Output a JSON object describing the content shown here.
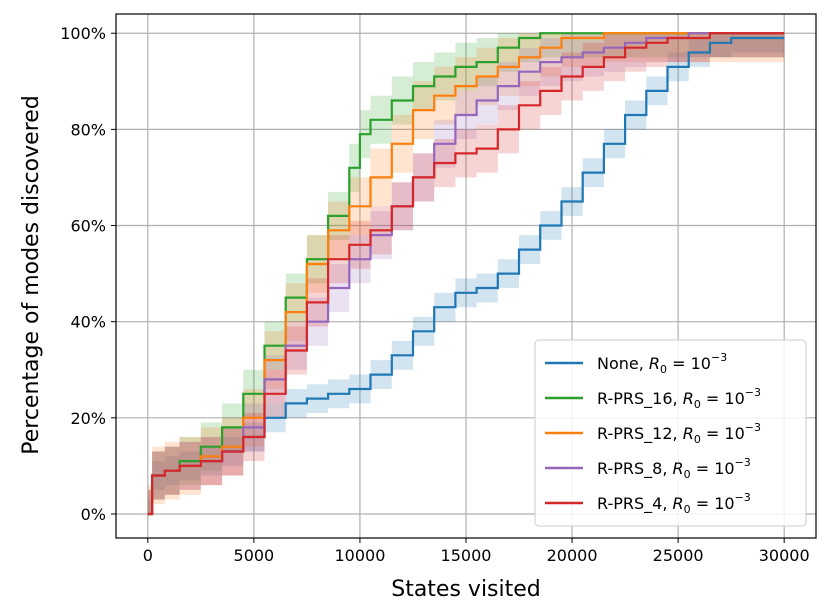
{
  "chart_data": {
    "type": "line",
    "title": "",
    "xlabel": "States visited",
    "ylabel": "Percentage of modes discovered",
    "xlim": [
      -1500,
      31500
    ],
    "ylim": [
      -5,
      104
    ],
    "x_ticks": [
      0,
      5000,
      10000,
      15000,
      20000,
      25000,
      30000
    ],
    "x_tick_labels": [
      "0",
      "5000",
      "10000",
      "15000",
      "20000",
      "25000",
      "30000"
    ],
    "y_ticks": [
      0,
      20,
      40,
      60,
      80,
      100
    ],
    "y_tick_labels": [
      "0%",
      "20%",
      "40%",
      "60%",
      "80%",
      "100%"
    ],
    "grid": true,
    "legend_position": "bottom-right",
    "series": [
      {
        "name": "None",
        "label_prefix": "None, ",
        "color": "#1f77b4",
        "x": [
          0,
          200,
          800,
          1500,
          2500,
          3500,
          4500,
          5500,
          6500,
          7500,
          8500,
          9500,
          10500,
          11500,
          12500,
          13500,
          14500,
          15500,
          16500,
          17500,
          18500,
          19500,
          20500,
          21500,
          22500,
          23500,
          24500,
          25500,
          26500,
          27500,
          28500,
          30000
        ],
        "values": [
          0,
          8,
          9,
          10,
          11,
          13,
          16,
          20,
          23,
          24,
          25,
          26,
          29,
          33,
          38,
          43,
          46,
          47,
          50,
          55,
          60,
          65,
          71,
          77,
          83,
          88,
          93,
          96,
          98,
          99,
          99,
          99
        ],
        "band": 3
      },
      {
        "name": "R-PRS_16",
        "label_prefix": "R-PRS_16, ",
        "color": "#2ca02c",
        "x": [
          0,
          200,
          800,
          1500,
          2500,
          3500,
          4500,
          5500,
          6500,
          7500,
          8500,
          9500,
          10000,
          10500,
          11500,
          12500,
          13500,
          14500,
          15500,
          16500,
          17500,
          18500,
          19500,
          25500,
          30000
        ],
        "values": [
          0,
          8,
          9,
          11,
          14,
          18,
          25,
          35,
          45,
          53,
          62,
          72,
          79,
          82,
          86,
          89,
          91,
          93,
          94,
          97,
          99,
          100,
          100,
          100,
          100
        ],
        "band": 5
      },
      {
        "name": "R-PRS_12",
        "label_prefix": "R-PRS_12, ",
        "color": "#ff7f0e",
        "x": [
          0,
          200,
          800,
          1500,
          2500,
          3500,
          4500,
          5500,
          6500,
          7500,
          8500,
          9500,
          10500,
          11500,
          12500,
          13500,
          14500,
          15500,
          16500,
          17500,
          18500,
          19500,
          20500,
          21500,
          25500,
          30000
        ],
        "values": [
          0,
          8,
          9,
          10,
          12,
          14,
          20,
          32,
          42,
          52,
          59,
          64,
          70,
          77,
          84,
          87,
          89,
          91,
          93,
          95,
          97,
          99,
          99,
          100,
          100,
          100
        ],
        "band": 6
      },
      {
        "name": "R-PRS_8",
        "label_prefix": "R-PRS_8, ",
        "color": "#9467bd",
        "x": [
          0,
          200,
          800,
          1500,
          2500,
          3500,
          4500,
          5500,
          6500,
          7500,
          8500,
          9500,
          10500,
          11500,
          12500,
          13500,
          14500,
          15500,
          16500,
          17500,
          18500,
          19500,
          20500,
          21500,
          22500,
          23500,
          24500,
          25500,
          26500,
          30000
        ],
        "values": [
          0,
          8,
          9,
          10,
          11,
          13,
          18,
          28,
          35,
          40,
          47,
          53,
          58,
          64,
          70,
          77,
          83,
          86,
          89,
          92,
          94,
          95,
          96,
          97,
          98,
          99,
          99,
          100,
          100,
          100
        ],
        "band": 5
      },
      {
        "name": "R-PRS_4",
        "label_prefix": "R-PRS_4, ",
        "color": "#d62728",
        "x": [
          0,
          200,
          800,
          1500,
          2500,
          3500,
          4500,
          5500,
          6500,
          7500,
          8500,
          9500,
          10500,
          11500,
          12500,
          13500,
          14500,
          15500,
          16500,
          17500,
          18500,
          19500,
          20500,
          21500,
          22500,
          23500,
          24500,
          25500,
          26500,
          30000
        ],
        "values": [
          0,
          8,
          9,
          10,
          11,
          13,
          16,
          25,
          34,
          44,
          53,
          56,
          59,
          64,
          70,
          73,
          75,
          76,
          80,
          85,
          88,
          91,
          93,
          95,
          97,
          98,
          99,
          99,
          100,
          100
        ],
        "band": 5
      }
    ],
    "legend_math": {
      "r": "R",
      "sub": "0",
      "eq": " = 10",
      "exp": "−3"
    }
  }
}
